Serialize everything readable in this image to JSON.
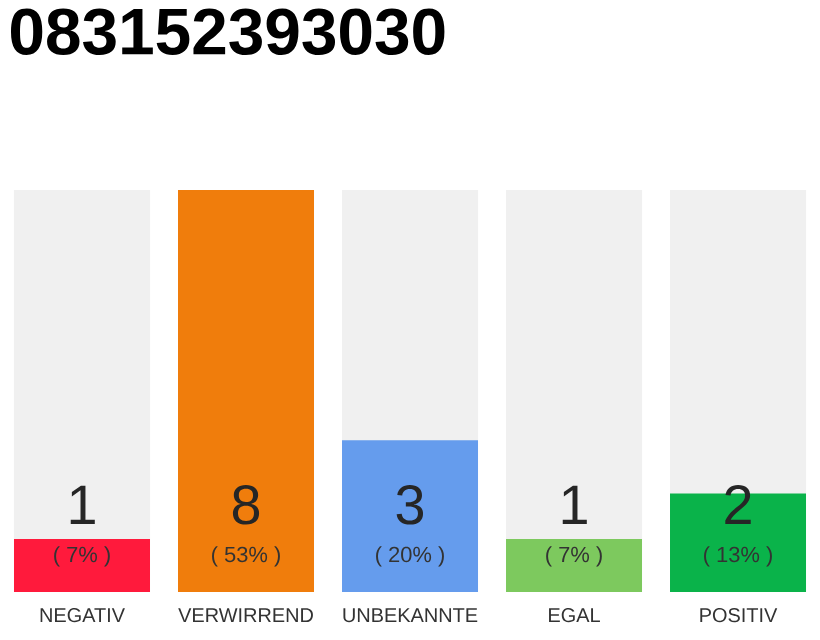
{
  "chart_data": {
    "type": "bar",
    "title": "083152393030",
    "categories": [
      "NEGATIV",
      "VERWIRREND",
      "UNBEKANNTE",
      "EGAL",
      "POSITIV"
    ],
    "values": [
      7,
      53,
      20,
      7,
      13
    ],
    "colors": [
      "#ff1a3c",
      "#f07d0c",
      "#659ced",
      "#7dc95e",
      "#0ab34a"
    ],
    "value_labels": [
      "( 7% )",
      "( 53% )",
      "( 20% )",
      "( 7% )",
      "( 13% )"
    ],
    "annotations": [
      "1",
      "8",
      "3",
      "1",
      "2"
    ]
  }
}
